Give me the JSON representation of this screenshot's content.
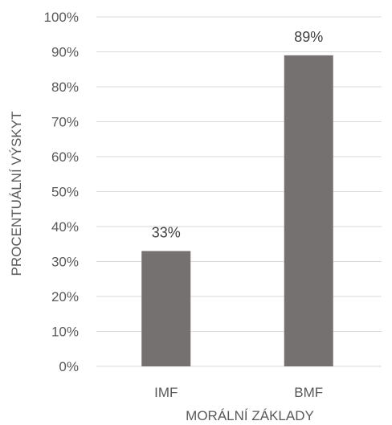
{
  "chart_data": {
    "type": "bar",
    "title": "",
    "categories": [
      "IMF",
      "BMF"
    ],
    "values": [
      33,
      89
    ],
    "data_labels": [
      "33%",
      "89%"
    ],
    "xlabel": "MORÁLNÍ ZÁKLADY",
    "ylabel": "PROCENTUÁLNÍ VÝSKYT",
    "ylim": [
      0,
      100
    ],
    "ytick_step": 10,
    "ytick_suffix": "%",
    "grid": true,
    "legend": "none",
    "bar_color": "#767171",
    "grid_color": "#d9d9d9"
  }
}
